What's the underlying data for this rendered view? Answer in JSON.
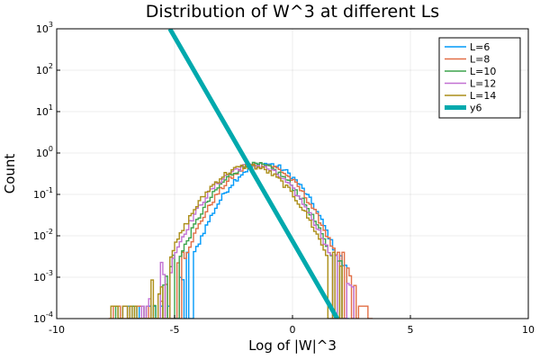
{
  "chart_data": {
    "type": "line",
    "subtype": "step-histogram",
    "title": "Distribution of W^3 at different Ls",
    "xlabel": "Log of |W|^3",
    "ylabel": "Count",
    "xlim": [
      -10,
      10
    ],
    "ylim": [
      0.0001,
      1000
    ],
    "yscale": "log",
    "grid": true,
    "legend_position": "top-right",
    "x_ticks": [
      {
        "value": -10,
        "label": "-10"
      },
      {
        "value": -5,
        "label": "-5"
      },
      {
        "value": 0,
        "label": "0"
      },
      {
        "value": 5,
        "label": "5"
      },
      {
        "value": 10,
        "label": "10"
      }
    ],
    "y_ticks": [
      {
        "value": 0.0001,
        "base": "10",
        "exp": "-4"
      },
      {
        "value": 0.001,
        "base": "10",
        "exp": "-3"
      },
      {
        "value": 0.01,
        "base": "10",
        "exp": "-2"
      },
      {
        "value": 0.1,
        "base": "10",
        "exp": "-1"
      },
      {
        "value": 1,
        "base": "10",
        "exp": "0"
      },
      {
        "value": 10,
        "base": "10",
        "exp": "1"
      },
      {
        "value": 100,
        "base": "10",
        "exp": "2"
      },
      {
        "value": 1000,
        "base": "10",
        "exp": "3"
      }
    ],
    "series": [
      {
        "name": "L=6",
        "color": "#009af9",
        "peak_x": -1.2,
        "peak_y": 0.55,
        "sigma": 0.95,
        "x_min": -7.2,
        "x_max": 2.3
      },
      {
        "name": "L=8",
        "color": "#e26f46",
        "peak_x": -1.4,
        "peak_y": 0.54,
        "sigma": 1.0,
        "x_min": -7.8,
        "x_max": 3.3
      },
      {
        "name": "L=10",
        "color": "#3da44d",
        "peak_x": -1.6,
        "peak_y": 0.52,
        "sigma": 1.0,
        "x_min": -7.5,
        "x_max": 2.2
      },
      {
        "name": "L=12",
        "color": "#c271d2",
        "peak_x": -1.75,
        "peak_y": 0.5,
        "sigma": 1.05,
        "x_min": -7.3,
        "x_max": 2.5
      },
      {
        "name": "L=14",
        "color": "#ac8e18",
        "peak_x": -1.9,
        "peak_y": 0.48,
        "sigma": 1.05,
        "x_min": -7.7,
        "x_max": 2.0
      },
      {
        "name": "y6",
        "color": "#00a9ad",
        "kind": "line",
        "x": [
          -5.2,
          1.9
        ],
        "y": [
          1000,
          0.0001
        ]
      }
    ]
  }
}
